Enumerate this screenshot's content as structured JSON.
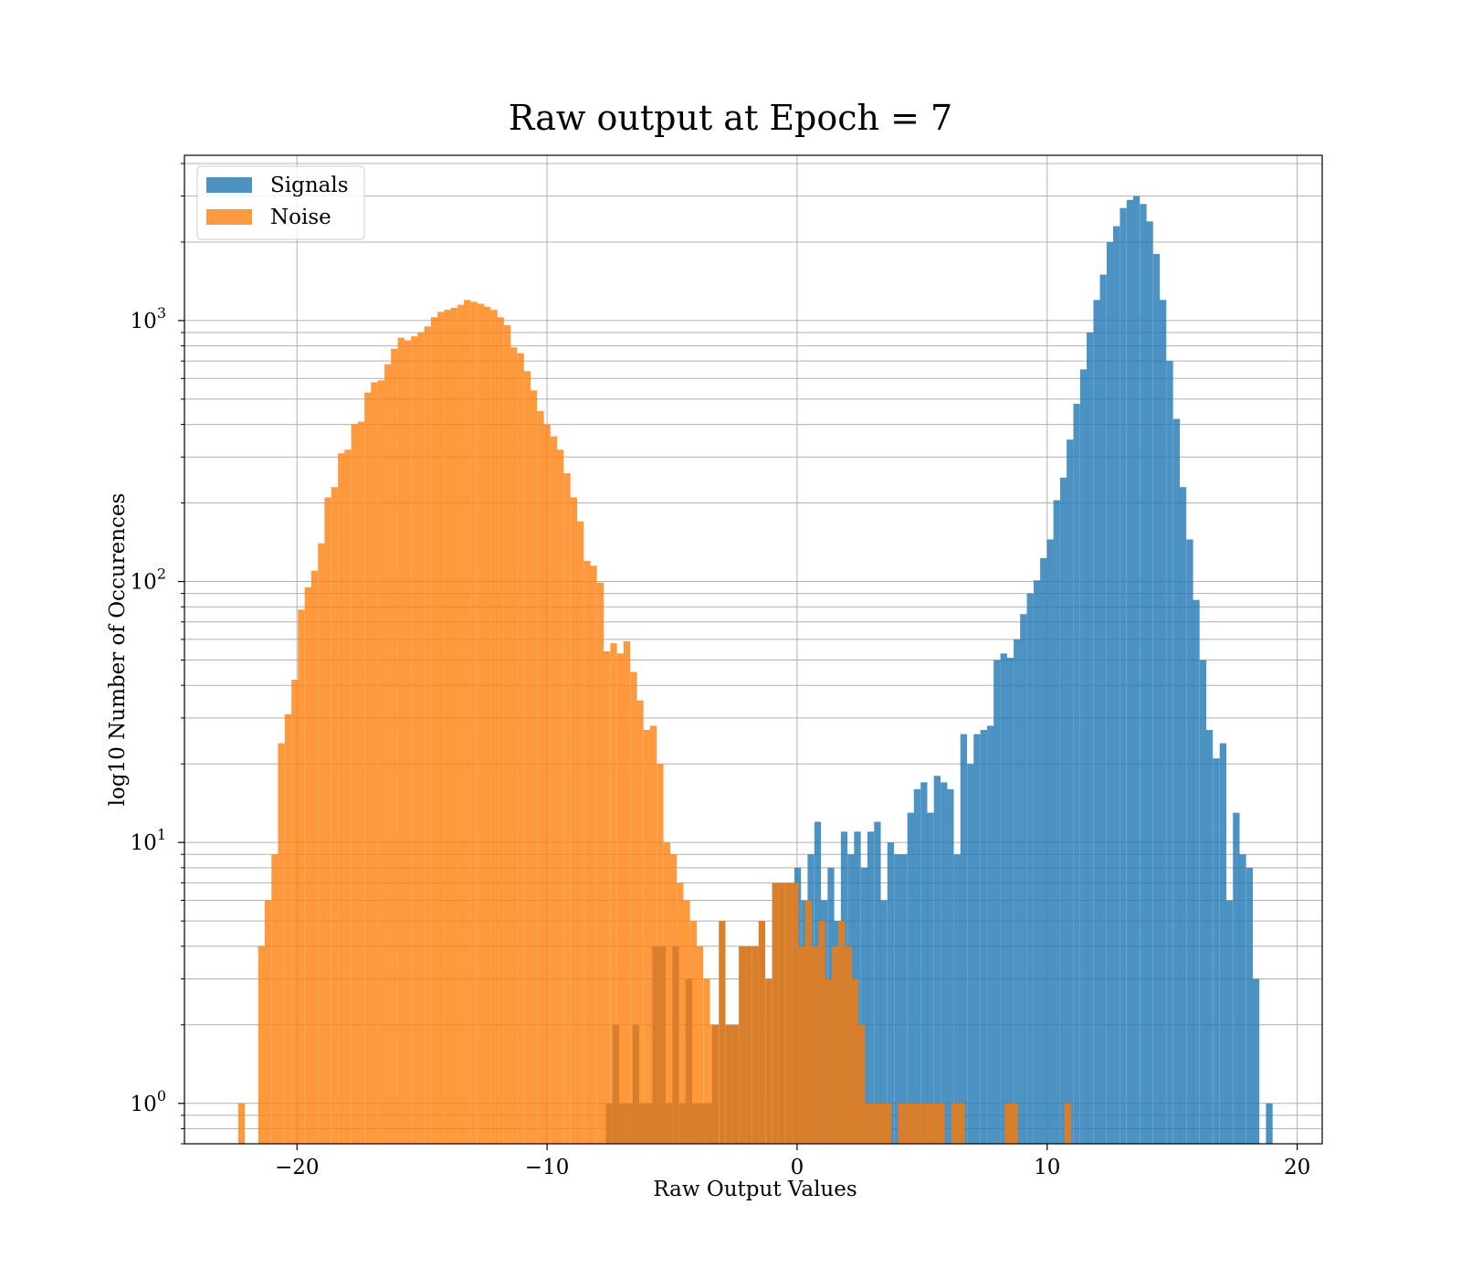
{
  "chart_data": {
    "type": "bar",
    "title": "Raw output at Epoch = 7",
    "xlabel": "Raw Output Values",
    "ylabel": "log10 Number of Occurences",
    "yscale": "log",
    "xlim": [
      -24.5,
      21
    ],
    "ylim": [
      0.7,
      4300
    ],
    "xticks": [
      -20,
      -10,
      0,
      10,
      20
    ],
    "xtick_labels": [
      "−20",
      "−10",
      "0",
      "10",
      "20"
    ],
    "yticks": [
      1,
      10,
      100,
      1000
    ],
    "ytick_labels": [
      {
        "base": "10",
        "exp": "0"
      },
      {
        "base": "10",
        "exp": "1"
      },
      {
        "base": "10",
        "exp": "2"
      },
      {
        "base": "10",
        "exp": "3"
      }
    ],
    "grid": true,
    "legend_position": "top-left",
    "series": [
      {
        "name": "Signals",
        "color": "#1f77b4",
        "opacity": 0.8,
        "bin_width": 0.266,
        "bins": [
          [
            -0.11,
            8
          ],
          [
            0.16,
            6
          ],
          [
            0.42,
            9
          ],
          [
            0.69,
            12
          ],
          [
            0.95,
            6
          ],
          [
            1.22,
            8
          ],
          [
            1.48,
            5
          ],
          [
            1.75,
            11
          ],
          [
            2.02,
            9
          ],
          [
            2.28,
            11
          ],
          [
            2.55,
            8
          ],
          [
            2.81,
            11
          ],
          [
            3.08,
            12
          ],
          [
            3.34,
            6
          ],
          [
            3.61,
            10
          ],
          [
            3.88,
            9
          ],
          [
            4.14,
            9
          ],
          [
            4.41,
            13
          ],
          [
            4.67,
            16
          ],
          [
            4.94,
            17
          ],
          [
            5.2,
            13
          ],
          [
            5.47,
            18
          ],
          [
            5.74,
            17
          ],
          [
            6.0,
            16
          ],
          [
            6.27,
            9
          ],
          [
            6.53,
            26
          ],
          [
            6.8,
            20
          ],
          [
            7.06,
            26
          ],
          [
            7.33,
            27
          ],
          [
            7.6,
            28
          ],
          [
            7.86,
            50
          ],
          [
            8.13,
            53
          ],
          [
            8.39,
            51
          ],
          [
            8.66,
            60
          ],
          [
            8.92,
            75
          ],
          [
            9.19,
            90
          ],
          [
            9.46,
            101
          ],
          [
            9.72,
            123
          ],
          [
            9.99,
            145
          ],
          [
            10.25,
            205
          ],
          [
            10.52,
            250
          ],
          [
            10.78,
            350
          ],
          [
            11.05,
            480
          ],
          [
            11.32,
            650
          ],
          [
            11.58,
            900
          ],
          [
            11.85,
            1200
          ],
          [
            12.11,
            1500
          ],
          [
            12.38,
            2000
          ],
          [
            12.64,
            2300
          ],
          [
            12.91,
            2700
          ],
          [
            13.18,
            2900
          ],
          [
            13.44,
            3000
          ],
          [
            13.71,
            2800
          ],
          [
            13.97,
            2400
          ],
          [
            14.24,
            1800
          ],
          [
            14.5,
            1200
          ],
          [
            14.77,
            700
          ],
          [
            15.04,
            420
          ],
          [
            15.3,
            230
          ],
          [
            15.57,
            145
          ],
          [
            15.83,
            85
          ],
          [
            16.1,
            50
          ],
          [
            16.36,
            27
          ],
          [
            16.63,
            21
          ],
          [
            16.9,
            24
          ],
          [
            17.16,
            6
          ],
          [
            17.43,
            13
          ],
          [
            17.69,
            9
          ],
          [
            17.96,
            8
          ],
          [
            18.22,
            3
          ],
          [
            18.75,
            1
          ]
        ]
      },
      {
        "name": "Noise",
        "color": "#ff7f0e",
        "opacity": 0.8,
        "bin_width": 0.266,
        "bins": [
          [
            -22.35,
            1
          ],
          [
            -21.55,
            4
          ],
          [
            -21.29,
            6
          ],
          [
            -21.02,
            9
          ],
          [
            -20.76,
            24
          ],
          [
            -20.49,
            31
          ],
          [
            -20.22,
            42
          ],
          [
            -19.96,
            78
          ],
          [
            -19.69,
            95
          ],
          [
            -19.43,
            110
          ],
          [
            -19.16,
            140
          ],
          [
            -18.9,
            210
          ],
          [
            -18.63,
            230
          ],
          [
            -18.36,
            310
          ],
          [
            -18.1,
            320
          ],
          [
            -17.83,
            400
          ],
          [
            -17.57,
            410
          ],
          [
            -17.3,
            530
          ],
          [
            -17.04,
            580
          ],
          [
            -16.77,
            590
          ],
          [
            -16.5,
            680
          ],
          [
            -16.24,
            780
          ],
          [
            -15.97,
            860
          ],
          [
            -15.71,
            840
          ],
          [
            -15.44,
            870
          ],
          [
            -15.18,
            900
          ],
          [
            -14.91,
            950
          ],
          [
            -14.64,
            1030
          ],
          [
            -14.38,
            1080
          ],
          [
            -14.11,
            1100
          ],
          [
            -13.85,
            1120
          ],
          [
            -13.58,
            1150
          ],
          [
            -13.32,
            1200
          ],
          [
            -13.05,
            1180
          ],
          [
            -12.78,
            1160
          ],
          [
            -12.52,
            1130
          ],
          [
            -12.25,
            1100
          ],
          [
            -11.99,
            1030
          ],
          [
            -11.72,
            960
          ],
          [
            -11.46,
            790
          ],
          [
            -11.19,
            750
          ],
          [
            -10.92,
            640
          ],
          [
            -10.66,
            540
          ],
          [
            -10.39,
            450
          ],
          [
            -10.13,
            400
          ],
          [
            -9.86,
            360
          ],
          [
            -9.6,
            320
          ],
          [
            -9.33,
            260
          ],
          [
            -9.06,
            210
          ],
          [
            -8.8,
            170
          ],
          [
            -8.53,
            120
          ],
          [
            -8.27,
            115
          ],
          [
            -8.0,
            99
          ],
          [
            -7.74,
            54
          ],
          [
            -7.47,
            58
          ],
          [
            -7.2,
            53
          ],
          [
            -6.94,
            59
          ],
          [
            -6.67,
            45
          ],
          [
            -6.41,
            35
          ],
          [
            -6.14,
            27
          ],
          [
            -5.88,
            28
          ],
          [
            -5.61,
            20
          ],
          [
            -5.34,
            10
          ],
          [
            -5.08,
            9
          ],
          [
            -4.81,
            7
          ],
          [
            -4.55,
            6
          ],
          [
            -4.28,
            5
          ],
          [
            -4.02,
            4
          ],
          [
            -3.75,
            3
          ],
          [
            -3.48,
            2
          ]
        ]
      },
      {
        "name": "",
        "color": "#d97f2c",
        "opacity": 1,
        "bin_width": 0.266,
        "bins": [
          [
            -7.65,
            1
          ],
          [
            -7.38,
            2
          ],
          [
            -7.12,
            1
          ],
          [
            -6.85,
            1
          ],
          [
            -6.58,
            2
          ],
          [
            -6.32,
            1
          ],
          [
            -6.05,
            1
          ],
          [
            -5.79,
            4
          ],
          [
            -5.52,
            4
          ],
          [
            -5.26,
            1
          ],
          [
            -4.99,
            4
          ],
          [
            -4.72,
            1
          ],
          [
            -4.46,
            3
          ],
          [
            -4.19,
            1
          ],
          [
            -3.93,
            1
          ],
          [
            -3.66,
            1
          ],
          [
            -3.4,
            2
          ],
          [
            -3.13,
            5
          ],
          [
            -2.86,
            2
          ],
          [
            -2.6,
            2
          ],
          [
            -2.33,
            4
          ],
          [
            -2.07,
            4
          ],
          [
            -1.8,
            4
          ],
          [
            -1.54,
            5
          ],
          [
            -1.27,
            3
          ],
          [
            -1.0,
            7
          ],
          [
            -0.74,
            7
          ],
          [
            -0.47,
            7
          ],
          [
            -0.21,
            7
          ],
          [
            0.06,
            4
          ],
          [
            0.32,
            6
          ],
          [
            0.59,
            4
          ],
          [
            0.86,
            5
          ],
          [
            1.12,
            3
          ],
          [
            1.39,
            4
          ],
          [
            1.65,
            5
          ],
          [
            1.92,
            4
          ],
          [
            2.18,
            3
          ],
          [
            2.45,
            2
          ],
          [
            2.72,
            1
          ],
          [
            2.98,
            1
          ],
          [
            3.25,
            1
          ],
          [
            3.51,
            1
          ],
          [
            4.04,
            1
          ],
          [
            4.31,
            1
          ],
          [
            4.58,
            1
          ],
          [
            4.84,
            1
          ],
          [
            5.11,
            1
          ],
          [
            5.37,
            1
          ],
          [
            5.64,
            1
          ],
          [
            6.17,
            1
          ],
          [
            6.44,
            1
          ],
          [
            8.3,
            1
          ],
          [
            8.56,
            1
          ],
          [
            10.69,
            1
          ]
        ]
      }
    ]
  }
}
